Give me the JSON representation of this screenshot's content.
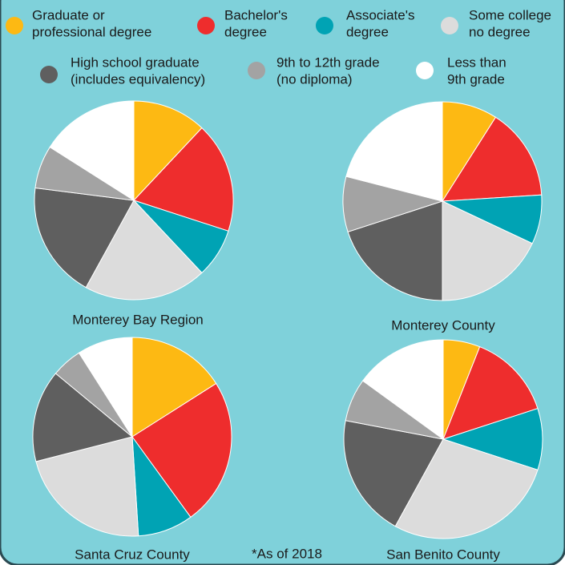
{
  "legend": [
    {
      "label": [
        "Graduate or",
        "professional degree"
      ],
      "color": "#fdb913"
    },
    {
      "label": [
        "Bachelor's",
        "degree"
      ],
      "color": "#ee2d2d"
    },
    {
      "label": [
        "Associate's",
        "degree"
      ],
      "color": "#00a3b4"
    },
    {
      "label": [
        "Some college",
        "no degree"
      ],
      "color": "#dcdcdc"
    },
    {
      "label": [
        "High school graduate",
        "(includes equivalency)"
      ],
      "color": "#5f5f5f"
    },
    {
      "label": [
        "9th to 12th grade",
        "(no diploma)"
      ],
      "color": "#a3a3a3"
    },
    {
      "label": [
        "Less than",
        "9th grade"
      ],
      "color": "#ffffff"
    }
  ],
  "chart_data": [
    {
      "type": "pie",
      "title": "Monterey Bay Region",
      "values": [
        12,
        18,
        8,
        20,
        19,
        7,
        16
      ]
    },
    {
      "type": "pie",
      "title": "Monterey County",
      "values": [
        9,
        15,
        8,
        18,
        20,
        9,
        21
      ]
    },
    {
      "type": "pie",
      "title": "Santa Cruz County",
      "values": [
        16,
        24,
        9,
        22,
        15,
        5,
        9
      ]
    },
    {
      "type": "pie",
      "title": "San Benito County",
      "values": [
        6,
        14,
        10,
        28,
        20,
        7,
        15
      ]
    }
  ],
  "note": "*As of 2018"
}
